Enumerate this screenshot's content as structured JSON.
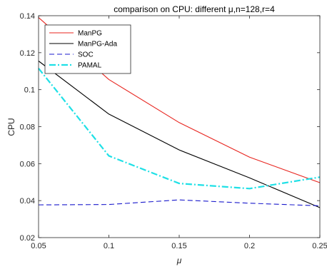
{
  "chart_data": {
    "type": "line",
    "title": "comparison on CPU: different μ,n=128,r=4",
    "xlabel": "μ",
    "ylabel": "CPU",
    "xlim": [
      0.05,
      0.25
    ],
    "ylim": [
      0.02,
      0.14
    ],
    "xticks": [
      0.05,
      0.1,
      0.15,
      0.2,
      0.25
    ],
    "xtick_labels": [
      "0.05",
      "0.1",
      "0.15",
      "0.2",
      "0.25"
    ],
    "yticks": [
      0.02,
      0.04,
      0.06,
      0.08,
      0.1,
      0.12,
      0.14
    ],
    "ytick_labels": [
      "0.02",
      "0.04",
      "0.06",
      "0.08",
      "0.1",
      "0.12",
      "0.14"
    ],
    "grid": false,
    "legend_position": "top-left",
    "series": [
      {
        "name": "ManPG",
        "color": "#e8251f",
        "dash": "solid",
        "x": [
          0.05,
          0.1,
          0.15,
          0.2,
          0.25
        ],
        "values": [
          0.139,
          0.1055,
          0.0822,
          0.0635,
          0.0497
        ]
      },
      {
        "name": "ManPG-Ada",
        "color": "#000000",
        "dash": "solid",
        "x": [
          0.05,
          0.1,
          0.15,
          0.2,
          0.25
        ],
        "values": [
          0.1155,
          0.0868,
          0.0674,
          0.0523,
          0.0362
        ]
      },
      {
        "name": "SOC",
        "color": "#1a1acc",
        "dash": "dashed",
        "x": [
          0.05,
          0.1,
          0.15,
          0.2,
          0.25
        ],
        "values": [
          0.0377,
          0.0379,
          0.0404,
          0.0386,
          0.0372
        ]
      },
      {
        "name": "PAMAL",
        "color": "#1fe0e6",
        "dash": "dashdot",
        "x": [
          0.05,
          0.1,
          0.15,
          0.2,
          0.25
        ],
        "values": [
          0.1115,
          0.0642,
          0.0493,
          0.0465,
          0.0527
        ]
      }
    ]
  }
}
